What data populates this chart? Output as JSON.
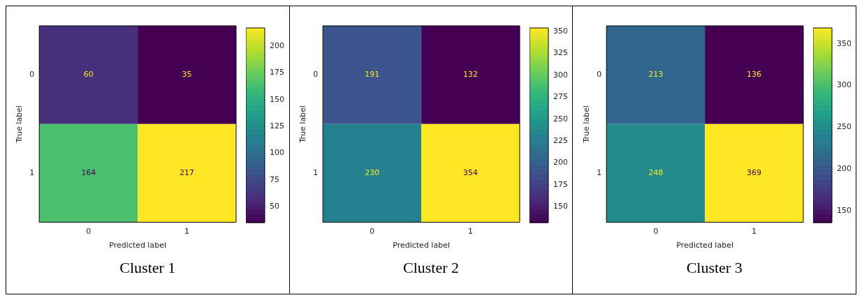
{
  "chart_data": [
    {
      "type": "heatmap",
      "title": "Cluster 1",
      "xlabel": "Predicted label",
      "ylabel": "True label",
      "categories": [
        "0",
        "1"
      ],
      "y_categories": [
        "0",
        "1"
      ],
      "cells": [
        [
          60,
          35
        ],
        [
          164,
          217
        ]
      ],
      "clim": [
        35,
        217
      ],
      "cticks": [
        50,
        75,
        100,
        125,
        150,
        175,
        200
      ],
      "data_labels": true,
      "grid": false
    },
    {
      "type": "heatmap",
      "title": "Cluster 2",
      "xlabel": "Predicted label",
      "ylabel": "True label",
      "categories": [
        "0",
        "1"
      ],
      "y_categories": [
        "0",
        "1"
      ],
      "cells": [
        [
          191,
          132
        ],
        [
          230,
          354
        ]
      ],
      "clim": [
        132,
        354
      ],
      "cticks": [
        150,
        175,
        200,
        225,
        250,
        275,
        300,
        325,
        350
      ],
      "data_labels": true,
      "grid": false
    },
    {
      "type": "heatmap",
      "title": "Cluster 3",
      "xlabel": "Predicted label",
      "ylabel": "True label",
      "categories": [
        "0",
        "1"
      ],
      "y_categories": [
        "0",
        "1"
      ],
      "cells": [
        [
          213,
          136
        ],
        [
          248,
          369
        ]
      ],
      "clim": [
        136,
        369
      ],
      "cticks": [
        150,
        200,
        250,
        300,
        350
      ],
      "data_labels": true,
      "grid": false
    }
  ]
}
